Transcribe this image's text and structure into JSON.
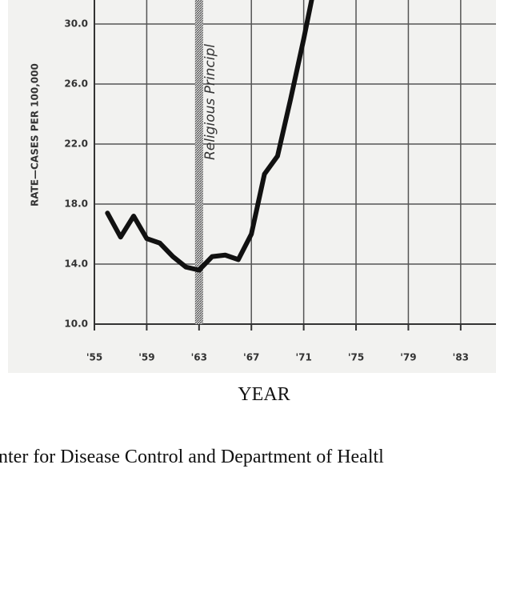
{
  "chart_data": {
    "type": "line",
    "y_label": "RATE—CASES PER 100,000",
    "x_label": "YEAR",
    "caption": "nter for Disease Control and Department of Healtl",
    "annotation": {
      "text": "Religious Principl",
      "x": 1963
    },
    "x": [
      1956,
      1957,
      1958,
      1959,
      1960,
      1961,
      1962,
      1963,
      1964,
      1965,
      1966,
      1967,
      1968,
      1969,
      1970,
      1971,
      1971.7
    ],
    "series": [
      {
        "name": "rate",
        "color": "#111111",
        "values": [
          17.4,
          15.8,
          17.2,
          15.7,
          15.4,
          14.5,
          13.8,
          13.6,
          14.5,
          14.6,
          14.3,
          16.0,
          20.0,
          21.2,
          25.0,
          29.0,
          32.0
        ]
      }
    ],
    "xlim": [
      1955,
      1985.7
    ],
    "ylim": [
      10,
      31.6
    ],
    "xticks": [
      {
        "value": 1955,
        "label": "'55"
      },
      {
        "value": 1959,
        "label": "'59"
      },
      {
        "value": 1963,
        "label": "'63"
      },
      {
        "value": 1967,
        "label": "'67"
      },
      {
        "value": 1971,
        "label": "'71"
      },
      {
        "value": 1975,
        "label": "'75"
      },
      {
        "value": 1979,
        "label": "'79"
      },
      {
        "value": 1983,
        "label": "'83"
      }
    ],
    "yticks": [
      {
        "value": 10,
        "label": "10.0"
      },
      {
        "value": 14,
        "label": "14.0"
      },
      {
        "value": 18,
        "label": "18.0"
      },
      {
        "value": 22,
        "label": "22.0"
      },
      {
        "value": 26,
        "label": "26.0"
      },
      {
        "value": 30,
        "label": "30.0"
      }
    ],
    "grid": true
  }
}
